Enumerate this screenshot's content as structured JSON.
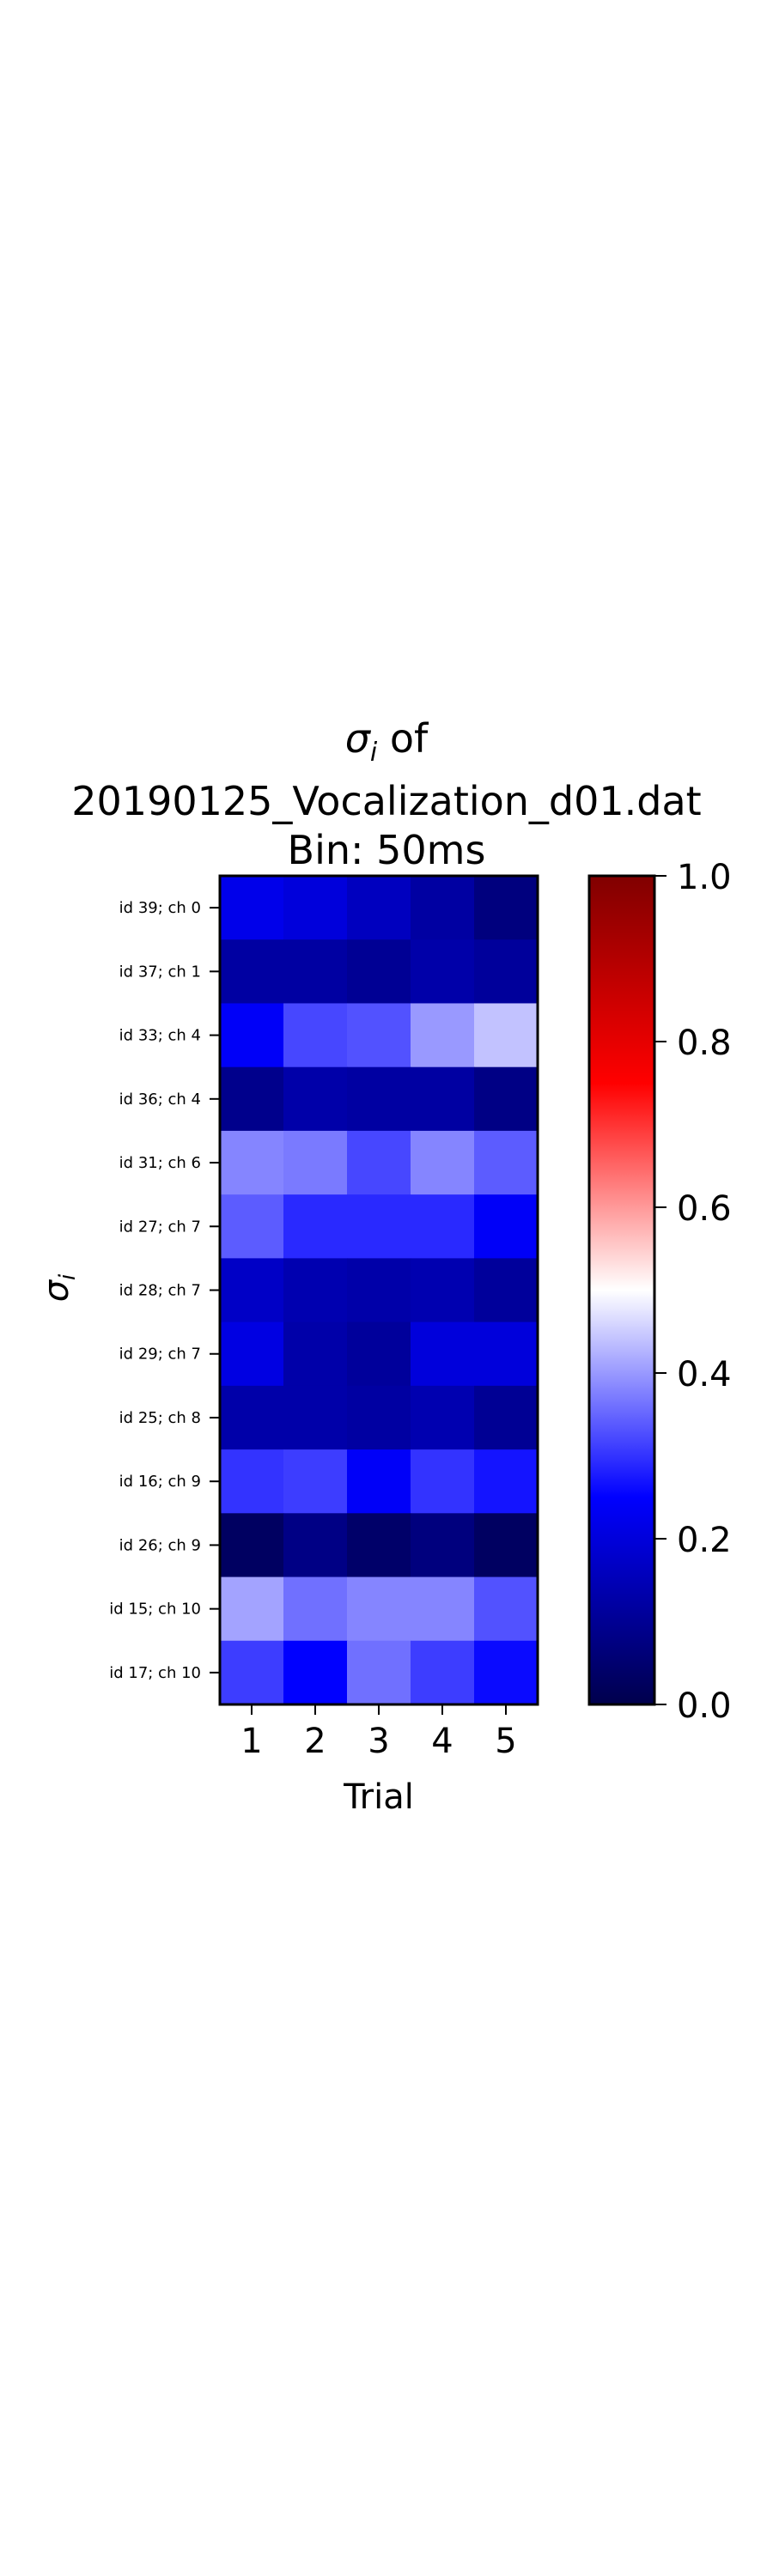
{
  "chart_data": {
    "type": "heatmap",
    "title": {
      "line1_symbol": "σ",
      "line1_subscript": "i",
      "line1_suffix": " of",
      "line2": "20190125_Vocalization_d01.dat",
      "line3": "Bin: 50ms"
    },
    "xlabel": "Trial",
    "ylabel_symbol": "σ",
    "ylabel_subscript": "i",
    "x_categories": [
      "1",
      "2",
      "3",
      "4",
      "5"
    ],
    "y_categories": [
      "id 39; ch 0",
      "id 37; ch 1",
      "id 33; ch 4",
      "id 36; ch 4",
      "id 31; ch 6",
      "id 27; ch 7",
      "id 28; ch 7",
      "id 29; ch 7",
      "id 25; ch 8",
      "id 16; ch 9",
      "id 26; ch 9",
      "id 15; ch 10",
      "id 17; ch 10"
    ],
    "values": [
      [
        0.22,
        0.2,
        0.16,
        0.12,
        0.07
      ],
      [
        0.12,
        0.12,
        0.1,
        0.13,
        0.11
      ],
      [
        0.24,
        0.32,
        0.33,
        0.4,
        0.44
      ],
      [
        0.09,
        0.13,
        0.12,
        0.12,
        0.08
      ],
      [
        0.38,
        0.37,
        0.32,
        0.38,
        0.34
      ],
      [
        0.34,
        0.29,
        0.29,
        0.29,
        0.24
      ],
      [
        0.17,
        0.14,
        0.13,
        0.14,
        0.11
      ],
      [
        0.21,
        0.13,
        0.11,
        0.2,
        0.2
      ],
      [
        0.13,
        0.13,
        0.12,
        0.14,
        0.1
      ],
      [
        0.3,
        0.31,
        0.24,
        0.3,
        0.27
      ],
      [
        0.03,
        0.08,
        0.04,
        0.07,
        0.03
      ],
      [
        0.41,
        0.36,
        0.38,
        0.38,
        0.33
      ],
      [
        0.31,
        0.25,
        0.36,
        0.31,
        0.26
      ]
    ],
    "colormap": "seismic",
    "colormap_stops": [
      "#00004c",
      "#0000ff",
      "#ffffff",
      "#ff0000",
      "#800000"
    ],
    "colorbar": {
      "range": [
        0.0,
        1.0
      ],
      "ticks": [
        0.0,
        0.2,
        0.4,
        0.6,
        0.8,
        1.0
      ],
      "tick_labels": [
        "0.0",
        "0.2",
        "0.4",
        "0.6",
        "0.8",
        "1.0"
      ]
    },
    "grid": false,
    "legend": "colorbar-right"
  }
}
